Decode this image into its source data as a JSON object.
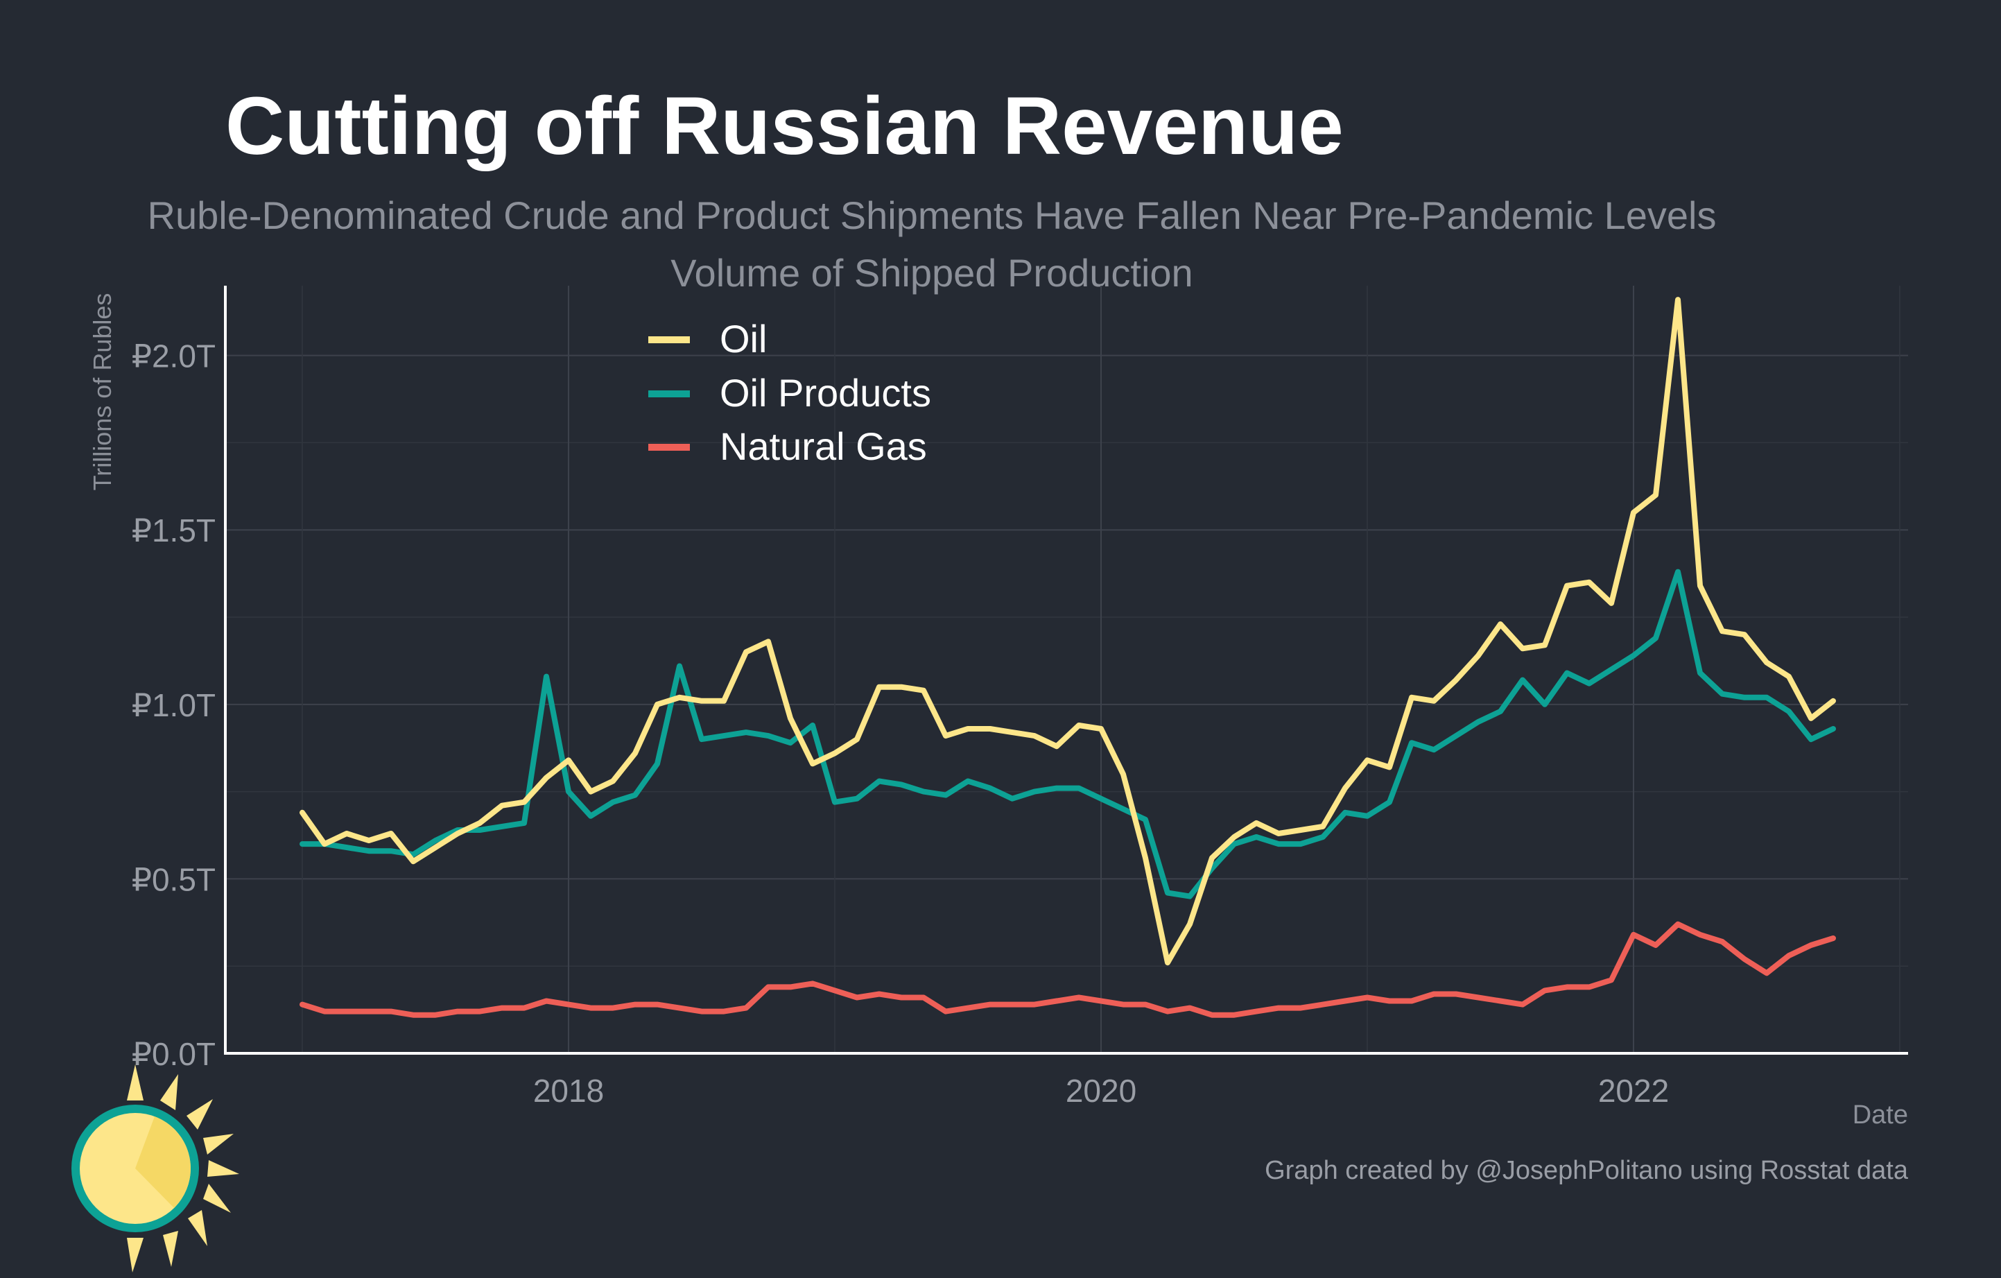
{
  "chart_data": {
    "type": "line",
    "title": "Cutting off Russian Revenue",
    "subtitle": "Ruble-Denominated Crude and Product Shipments Have Fallen Near Pre-Pandemic Levels",
    "subtitle2": "Volume of Shipped Production",
    "xlabel": "Date",
    "ylabel": "Trillions of Rubles",
    "caption": "Graph created by @JosephPolitano using Rosstat data",
    "x_start": "2017-01",
    "x_ticks": [
      "2018",
      "2020",
      "2022"
    ],
    "y_ticks": [
      "₽0.0T",
      "₽0.5T",
      "₽1.0T",
      "₽1.5T",
      "₽2.0T"
    ],
    "ylim": [
      0,
      2.2
    ],
    "legend_position": "top-left",
    "grid": true,
    "series": [
      {
        "name": "Oil",
        "color": "#fde68a",
        "values": [
          0.69,
          0.6,
          0.63,
          0.61,
          0.63,
          0.55,
          0.59,
          0.63,
          0.66,
          0.71,
          0.72,
          0.79,
          0.84,
          0.75,
          0.78,
          0.86,
          1.0,
          1.02,
          1.01,
          1.01,
          1.15,
          1.18,
          0.96,
          0.83,
          0.86,
          0.9,
          1.05,
          1.05,
          1.04,
          0.91,
          0.93,
          0.93,
          0.92,
          0.91,
          0.88,
          0.94,
          0.93,
          0.8,
          0.56,
          0.26,
          0.37,
          0.56,
          0.62,
          0.66,
          0.63,
          0.64,
          0.65,
          0.76,
          0.84,
          0.82,
          1.02,
          1.01,
          1.07,
          1.14,
          1.23,
          1.16,
          1.17,
          1.34,
          1.35,
          1.29,
          1.55,
          1.6,
          2.16,
          1.34,
          1.21,
          1.2,
          1.12,
          1.08,
          0.96,
          1.01
        ]
      },
      {
        "name": "Oil Products",
        "color": "#0da295",
        "values": [
          0.6,
          0.6,
          0.59,
          0.58,
          0.58,
          0.57,
          0.61,
          0.64,
          0.64,
          0.65,
          0.66,
          1.08,
          0.75,
          0.68,
          0.72,
          0.74,
          0.83,
          1.11,
          0.9,
          0.91,
          0.92,
          0.91,
          0.89,
          0.94,
          0.72,
          0.73,
          0.78,
          0.77,
          0.75,
          0.74,
          0.78,
          0.76,
          0.73,
          0.75,
          0.76,
          0.76,
          0.73,
          0.7,
          0.67,
          0.46,
          0.45,
          0.53,
          0.6,
          0.62,
          0.6,
          0.6,
          0.62,
          0.69,
          0.68,
          0.72,
          0.89,
          0.87,
          0.91,
          0.95,
          0.98,
          1.07,
          1.0,
          1.09,
          1.06,
          1.1,
          1.14,
          1.19,
          1.38,
          1.09,
          1.03,
          1.02,
          1.02,
          0.98,
          0.9,
          0.93
        ]
      },
      {
        "name": "Natural Gas",
        "color": "#ee5f57",
        "values": [
          0.14,
          0.12,
          0.12,
          0.12,
          0.12,
          0.11,
          0.11,
          0.12,
          0.12,
          0.13,
          0.13,
          0.15,
          0.14,
          0.13,
          0.13,
          0.14,
          0.14,
          0.13,
          0.12,
          0.12,
          0.13,
          0.19,
          0.19,
          0.2,
          0.18,
          0.16,
          0.17,
          0.16,
          0.16,
          0.12,
          0.13,
          0.14,
          0.14,
          0.14,
          0.15,
          0.16,
          0.15,
          0.14,
          0.14,
          0.12,
          0.13,
          0.11,
          0.11,
          0.12,
          0.13,
          0.13,
          0.14,
          0.15,
          0.16,
          0.15,
          0.15,
          0.17,
          0.17,
          0.16,
          0.15,
          0.14,
          0.18,
          0.19,
          0.19,
          0.21,
          0.34,
          0.31,
          0.37,
          0.34,
          0.32,
          0.27,
          0.23,
          0.28,
          0.31,
          0.33
        ]
      }
    ]
  },
  "colors": {
    "background": "#252a33",
    "grid": "#3b404a",
    "axis": "#ffffff",
    "logo_sun": "#fde68a",
    "logo_ring": "#0da295"
  },
  "logo": {
    "icon": "sun-logo-icon"
  }
}
